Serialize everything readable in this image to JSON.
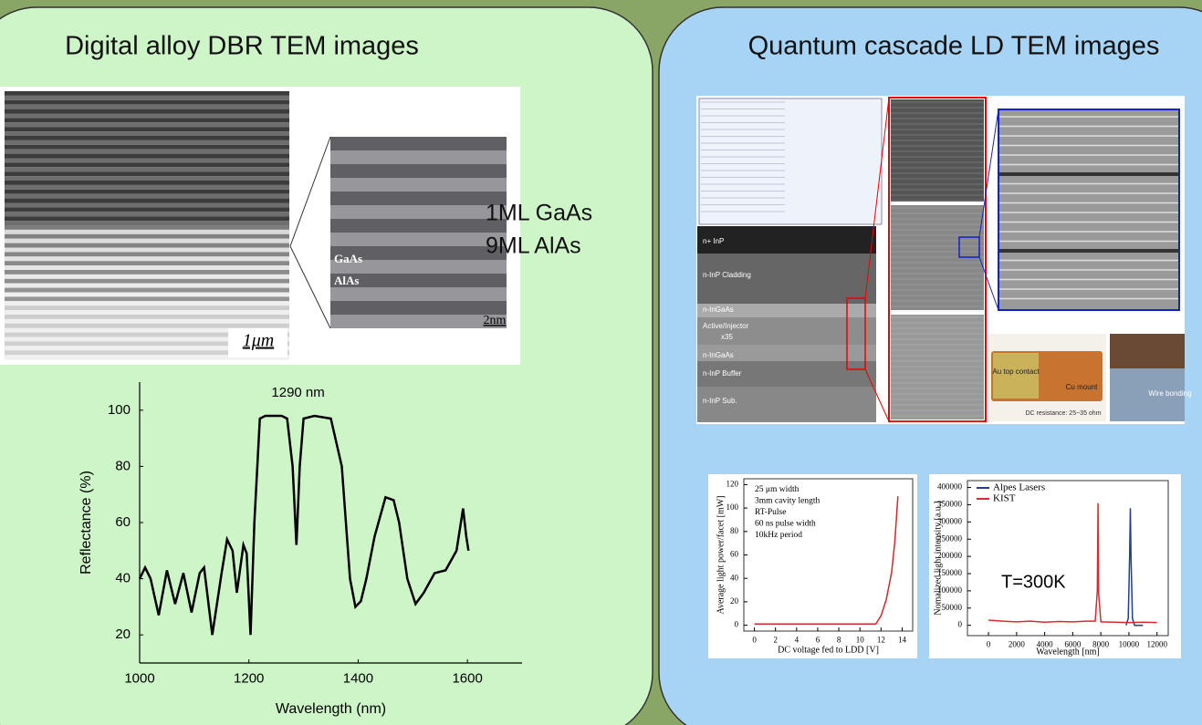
{
  "left_panel": {
    "title": "Digital alloy DBR TEM images",
    "image_labels": [
      "GaAs",
      "AlAs"
    ],
    "scale_bars": [
      "1μm",
      "2nm"
    ],
    "caption": [
      "1ML GaAs",
      "9ML AlAs"
    ]
  },
  "right_panel": {
    "title": "Quantum cascade LD TEM images",
    "layer_labels": [
      "n+ InP",
      "n-InP Cladding",
      "n-InGaAs",
      "Active/Injector",
      "x35",
      "n-InGaAs",
      "n-InP Buffer",
      "n-InP Sub."
    ],
    "mount_labels": [
      "Au top contact",
      "Cu mount",
      "DC resistance: 25~35 ohm",
      "Wire bonding"
    ]
  },
  "chart_data": [
    {
      "type": "line",
      "annotation": "1290 nm",
      "xlabel": "Wavelength (nm)",
      "ylabel": "Reflectance (%)",
      "color": "#000000",
      "x": [
        1000,
        1010,
        1020,
        1035,
        1050,
        1065,
        1080,
        1095,
        1110,
        1118,
        1133,
        1150,
        1160,
        1170,
        1178,
        1190,
        1196,
        1203,
        1210,
        1220,
        1230,
        1260,
        1270,
        1280,
        1287,
        1293,
        1300,
        1320,
        1350,
        1370,
        1385,
        1395,
        1405,
        1415,
        1430,
        1450,
        1465,
        1475,
        1490,
        1505,
        1520,
        1540,
        1560,
        1580,
        1592,
        1598,
        1602
      ],
      "values": [
        40,
        44,
        40,
        27,
        43,
        31,
        42,
        28,
        42,
        44,
        20,
        42,
        54,
        50,
        35,
        52,
        49,
        20,
        60,
        97,
        98,
        98,
        97,
        80,
        52,
        80,
        97,
        98,
        97,
        80,
        40,
        30,
        32,
        40,
        55,
        69,
        68,
        60,
        40,
        31,
        35,
        42,
        43,
        50,
        65,
        55,
        50
      ],
      "xlim": [
        1000,
        1700
      ],
      "ylim": [
        10,
        110
      ],
      "xticks": [
        1000,
        1200,
        1400,
        1600
      ],
      "yticks": [
        20,
        40,
        60,
        80,
        100
      ]
    },
    {
      "type": "line",
      "xlabel": "DC voltage  fed to LDD [V]",
      "ylabel": "Average light power/facet [mW]",
      "annotations": [
        "25 μm width",
        "3mm cavity length",
        "RT-Pulse",
        "60 ns pulse width",
        "10kHz period"
      ],
      "color": "#d62728",
      "x": [
        0,
        2,
        4,
        6,
        8,
        10,
        11,
        11.5,
        12,
        12.5,
        13,
        13.3,
        13.6
      ],
      "values": [
        1,
        1,
        1,
        1,
        1,
        1,
        1,
        1,
        8,
        22,
        45,
        70,
        110
      ],
      "xlim": [
        -1,
        15
      ],
      "ylim": [
        -5,
        125
      ],
      "xticks": [
        0,
        2,
        4,
        6,
        8,
        10,
        12,
        14
      ],
      "yticks": [
        0,
        20,
        40,
        60,
        80,
        100,
        120
      ]
    },
    {
      "type": "line",
      "xlabel": "Wavelength [nm]",
      "ylabel": "Nomalized light intensity [a.u.]",
      "annotation": "T=300K",
      "legend": "upper left",
      "series": [
        {
          "name": "Alpes Lasers",
          "color": "#1f3f8f",
          "x": [
            9800,
            9950,
            10050,
            10100,
            10150,
            10250,
            10400,
            11000
          ],
          "values": [
            0,
            20000,
            200000,
            340000,
            200000,
            20000,
            0,
            0
          ]
        },
        {
          "name": "KIST",
          "color": "#e0282e",
          "x": [
            0,
            1000,
            2000,
            3000,
            4000,
            5000,
            6000,
            7000,
            7600,
            7750,
            7800,
            7850,
            8000,
            9000,
            10000,
            11000,
            12000
          ],
          "values": [
            15000,
            12000,
            10000,
            12000,
            9000,
            11000,
            10000,
            12000,
            12000,
            100000,
            355000,
            90000,
            10000,
            9000,
            8000,
            9000,
            8000
          ]
        }
      ],
      "xlim": [
        -1500,
        12800
      ],
      "ylim": [
        -30000,
        420000
      ],
      "xticks": [
        0,
        2000,
        4000,
        6000,
        8000,
        10000,
        12000
      ],
      "yticks": [
        0,
        50000,
        100000,
        150000,
        200000,
        250000,
        300000,
        350000,
        400000
      ]
    }
  ]
}
